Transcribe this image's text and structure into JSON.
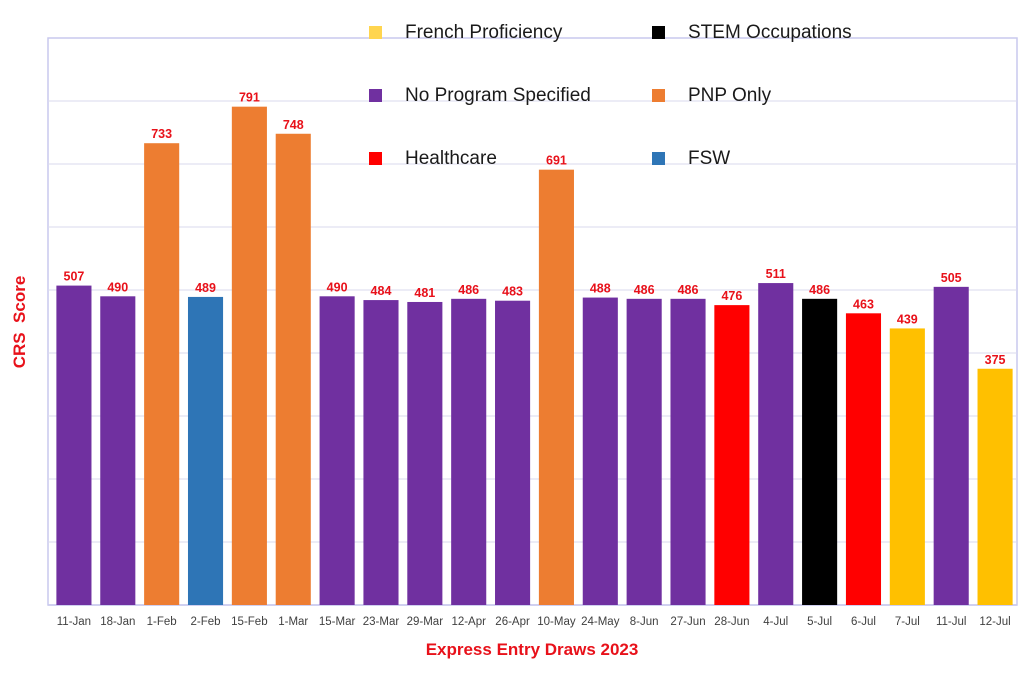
{
  "chart_data": {
    "type": "bar",
    "title": "",
    "xlabel": "Express Entry Draws 2023",
    "ylabel": "CRS  Score",
    "ylim": [
      0,
      900
    ],
    "grid": true,
    "legend_placement": "top-right",
    "categories": [
      "11-Jan",
      "18-Jan",
      "1-Feb",
      "2-Feb",
      "15-Feb",
      "1-Mar",
      "15-Mar",
      "23-Mar",
      "29-Mar",
      "12-Apr",
      "26-Apr",
      "10-May",
      "24-May",
      "8-Jun",
      "27-Jun",
      "28-Jun",
      "4-Jul",
      "5-Jul",
      "6-Jul",
      "7-Jul",
      "11-Jul",
      "12-Jul"
    ],
    "values": [
      507,
      490,
      733,
      489,
      791,
      748,
      490,
      484,
      481,
      486,
      483,
      691,
      488,
      486,
      486,
      476,
      511,
      486,
      463,
      439,
      505,
      375
    ],
    "bar_series": [
      "No Program Specified",
      "No Program Specified",
      "PNP Only",
      "FSW",
      "PNP Only",
      "PNP Only",
      "No Program Specified",
      "No Program Specified",
      "No Program Specified",
      "No Program Specified",
      "No Program Specified",
      "PNP Only",
      "No Program Specified",
      "No Program Specified",
      "No Program Specified",
      "Healthcare",
      "No Program Specified",
      "STEM Occupations",
      "Healthcare",
      "French Proficiency",
      "No Program Specified",
      "French Proficiency"
    ],
    "legend": [
      {
        "name": "French Proficiency",
        "color": "#FFD54F"
      },
      {
        "name": "STEM Occupations",
        "color": "#000000"
      },
      {
        "name": "No Program Specified",
        "color": "#7030A0"
      },
      {
        "name": "PNP Only",
        "color": "#ED7D31"
      },
      {
        "name": "Healthcare",
        "color": "#FF0000"
      },
      {
        "name": "FSW",
        "color": "#2E75B6"
      }
    ],
    "series_colors": {
      "No Program Specified": "#7030A0",
      "PNP Only": "#ED7D31",
      "FSW": "#2E75B6",
      "Healthcare": "#FF0000",
      "STEM Occupations": "#000000",
      "French Proficiency": "#FFC000"
    },
    "data_label_color": "#E8111A",
    "axis_label_color": "#E8111A",
    "tick_label_color": "#404040"
  }
}
